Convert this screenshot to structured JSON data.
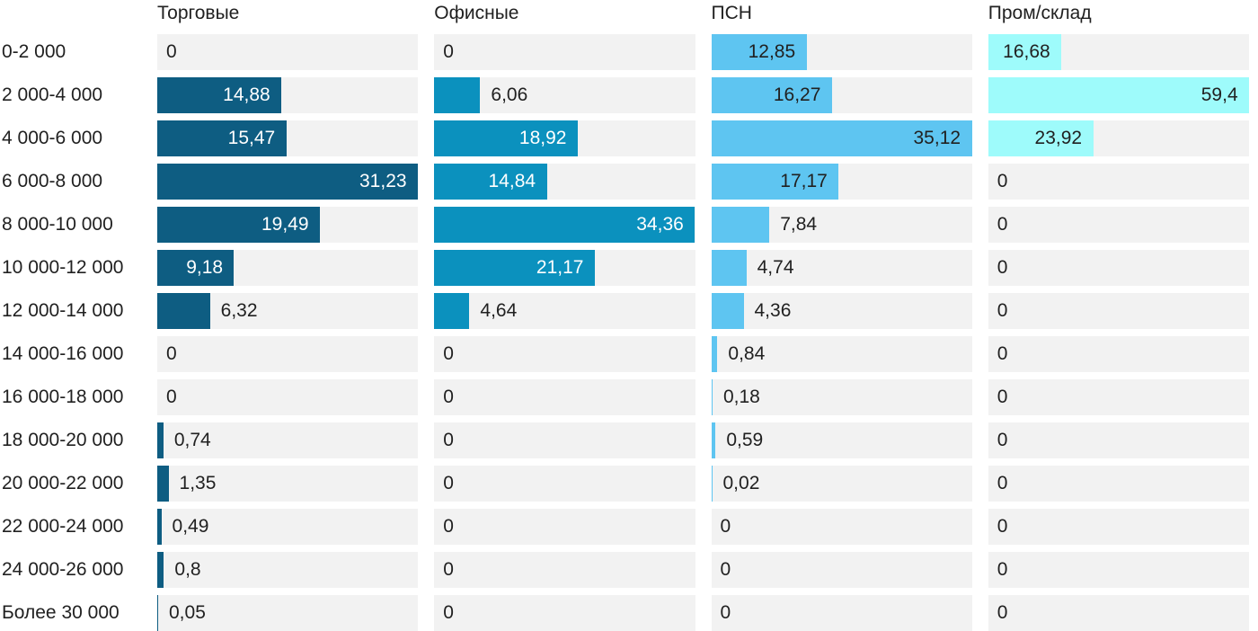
{
  "chart_data": {
    "type": "bar",
    "orientation": "horizontal",
    "title": "",
    "xlabel": "",
    "ylabel": "",
    "grid": false,
    "legend_position": "column-headers-top",
    "scaling_note": "each column is scaled independently so its max value fills the full track width",
    "decimal_separator": ",",
    "categories": [
      "0-2 000",
      "2 000-4 000",
      "4 000-6 000",
      "6 000-8 000",
      "8 000-10 000",
      "10 000-12 000",
      "12 000-14 000",
      "14 000-16 000",
      "16 000-18 000",
      "18 000-20 000",
      "20 000-22 000",
      "22 000-24 000",
      "24 000-26 000",
      "Более 30 000"
    ],
    "series": [
      {
        "name": "Торговые",
        "color": "#0e5d82",
        "inside_label_color": "#ffffff",
        "max": 31.23,
        "values": [
          0,
          14.88,
          15.47,
          31.23,
          19.49,
          9.18,
          6.32,
          0,
          0,
          0.74,
          1.35,
          0.49,
          0.8,
          0.05
        ]
      },
      {
        "name": "Офисные",
        "color": "#0b91be",
        "inside_label_color": "#ffffff",
        "max": 34.36,
        "values": [
          0,
          6.06,
          18.92,
          14.84,
          34.36,
          21.17,
          4.64,
          0,
          0,
          0,
          0,
          0,
          0,
          0
        ]
      },
      {
        "name": "ПСН",
        "color": "#5ec5f1",
        "inside_label_color": "#212121",
        "max": 35.12,
        "values": [
          12.85,
          16.27,
          35.12,
          17.17,
          7.84,
          4.74,
          4.36,
          0.84,
          0.18,
          0.59,
          0.02,
          0,
          0,
          0
        ]
      },
      {
        "name": "Пром/склад",
        "color": "#9efbfb",
        "inside_label_color": "#212121",
        "max": 59.4,
        "values": [
          16.68,
          59.4,
          23.92,
          0,
          0,
          0,
          0,
          0,
          0,
          0,
          0,
          0,
          0,
          0
        ]
      }
    ],
    "track_color": "#f2f2f2",
    "text_color": "#212121",
    "background_color": "#ffffff"
  }
}
